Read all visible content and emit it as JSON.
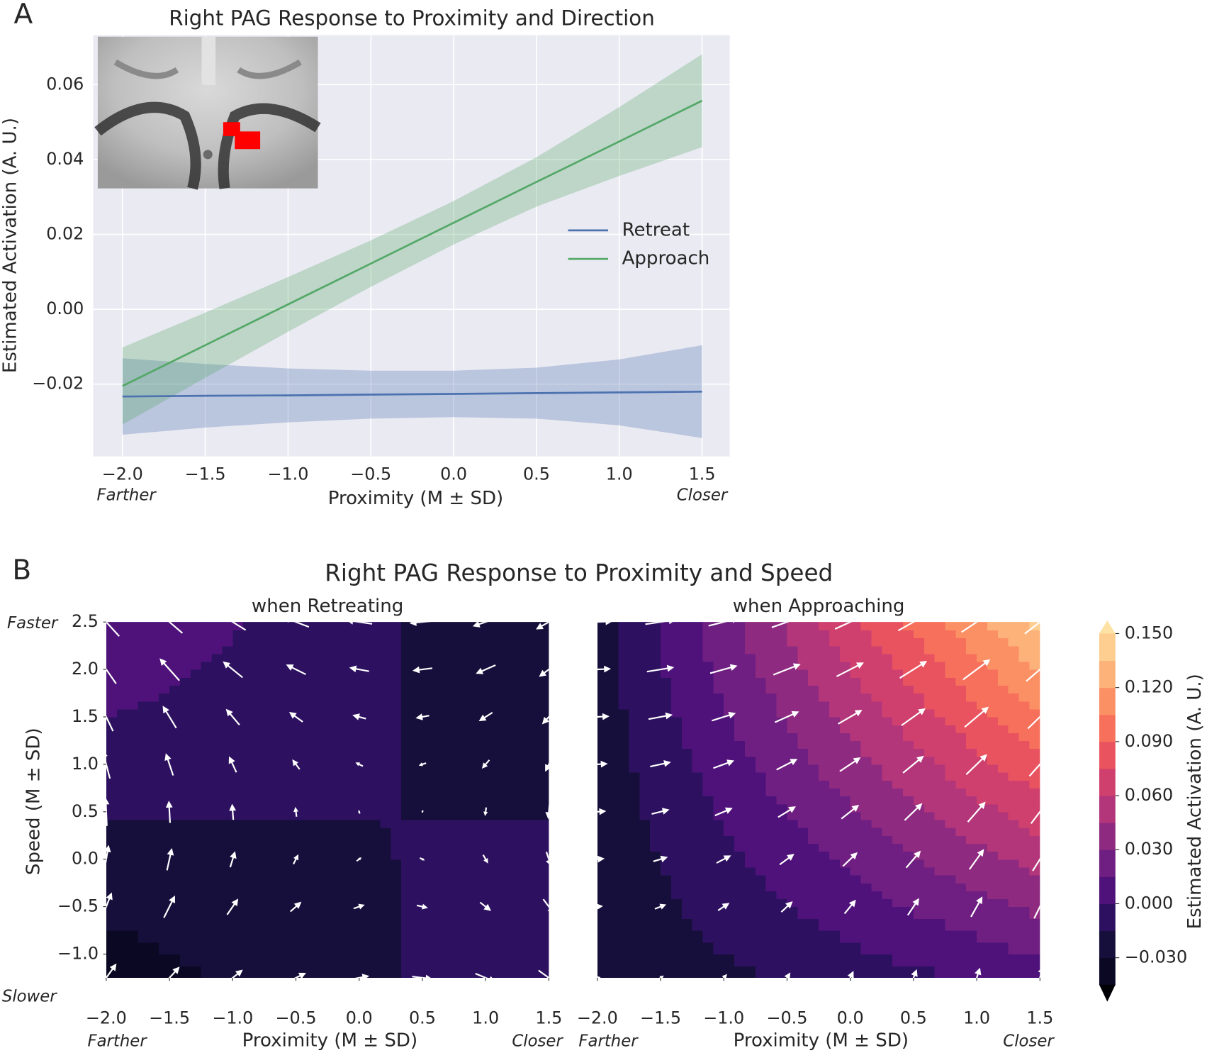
{
  "chart_data": [
    {
      "type": "line",
      "panel_label": "A",
      "title": "Right PAG Response to Proximity and Direction",
      "x_label": "Proximity (M ± SD)",
      "y_label": "Estimated Activation (A. U.)",
      "x_end_labels": [
        "Farther",
        "Closer"
      ],
      "x": [
        -2,
        -1.5,
        -1,
        -0.5,
        0,
        0.5,
        1,
        1.5
      ],
      "series": [
        {
          "name": "Retreat",
          "color": "#4c72b0",
          "values": [
            -0.0233,
            -0.0231,
            -0.023,
            -0.0228,
            -0.0226,
            -0.0224,
            -0.0222,
            -0.022
          ],
          "lower": [
            -0.0335,
            -0.0316,
            -0.0302,
            -0.0292,
            -0.0288,
            -0.0292,
            -0.031,
            -0.0344
          ],
          "upper": [
            -0.0131,
            -0.0146,
            -0.0158,
            -0.0164,
            -0.0164,
            -0.0156,
            -0.0134,
            -0.0096
          ]
        },
        {
          "name": "Approach",
          "color": "#55a868",
          "values": [
            -0.0205,
            -0.0096,
            0.0013,
            0.0122,
            0.0231,
            0.034,
            0.0448,
            0.0557
          ],
          "lower": [
            -0.0308,
            -0.0183,
            -0.006,
            0.006,
            0.0173,
            0.0274,
            0.0356,
            0.0433
          ],
          "upper": [
            -0.0102,
            -0.0009,
            0.0086,
            0.0184,
            0.0289,
            0.0406,
            0.054,
            0.0681
          ]
        }
      ],
      "xlim": [
        -2.177,
        1.667
      ],
      "ylim": [
        -0.0393,
        0.0732
      ],
      "xticks": [
        {
          "value": -2,
          "label": "−2.0"
        },
        {
          "value": -1.5,
          "label": "−1.5"
        },
        {
          "value": -1,
          "label": "−1.0"
        },
        {
          "value": -0.5,
          "label": "−0.5"
        },
        {
          "value": 0,
          "label": "0.0"
        },
        {
          "value": 0.5,
          "label": "0.5"
        },
        {
          "value": 1,
          "label": "1.0"
        },
        {
          "value": 1.5,
          "label": "1.5"
        }
      ],
      "yticks": [
        {
          "value": -0.02,
          "label": "−0.02"
        },
        {
          "value": 0,
          "label": "0.00"
        },
        {
          "value": 0.02,
          "label": "0.02"
        },
        {
          "value": 0.04,
          "label": "0.04"
        },
        {
          "value": 0.06,
          "label": "0.06"
        }
      ],
      "grid": true,
      "legend": "center right"
    },
    {
      "type": "contour",
      "panel_label": "B",
      "title": "Right PAG Response to Proximity and Speed",
      "x_label": "Proximity (M ± SD)",
      "y_label": "Speed (M ± SD)",
      "x_end_labels": [
        "Farther",
        "Closer"
      ],
      "y_end_labels": [
        "Slower",
        "Faster"
      ],
      "x": [
        -2,
        -1.5,
        -1,
        -0.5,
        0,
        0.5,
        1,
        1.5
      ],
      "y": [
        -1.25,
        -0.5,
        0,
        0.5,
        1,
        1.5,
        2,
        2.5
      ],
      "xlim": [
        -2,
        1.5
      ],
      "ylim": [
        -1.25,
        2.5
      ],
      "xticks": [
        {
          "value": -2,
          "label": "−2.0"
        },
        {
          "value": -1.5,
          "label": "−1.5"
        },
        {
          "value": -1,
          "label": "−1.0"
        },
        {
          "value": -0.5,
          "label": "−0.5"
        },
        {
          "value": 0,
          "label": "0.0"
        },
        {
          "value": 0.5,
          "label": "0.5"
        },
        {
          "value": 1,
          "label": "1.0"
        },
        {
          "value": 1.5,
          "label": "1.5"
        }
      ],
      "yticks": [
        {
          "value": -1,
          "label": "−1.0"
        },
        {
          "value": -0.5,
          "label": "−0.5"
        },
        {
          "value": 0,
          "label": "0.0"
        },
        {
          "value": 0.5,
          "label": "0.5"
        },
        {
          "value": 1,
          "label": "1.0"
        },
        {
          "value": 1.5,
          "label": "1.5"
        },
        {
          "value": 2,
          "label": "2.0"
        },
        {
          "value": 2.5,
          "label": "2.5"
        }
      ],
      "arrow_color": "#ffffff",
      "panels": [
        {
          "subtitle": "when Retreating",
          "z": [
            [
              -0.0378,
              -0.0328,
              -0.0279,
              -0.0229,
              -0.018,
              -0.013,
              -0.0081,
              -0.0031
            ],
            [
              -0.0274,
              -0.0247,
              -0.022,
              -0.0193,
              -0.0166,
              -0.0139,
              -0.0112,
              -0.0085
            ],
            [
              -0.0205,
              -0.0193,
              -0.0181,
              -0.0169,
              -0.0157,
              -0.0145,
              -0.0133,
              -0.0121
            ],
            [
              -0.0136,
              -0.0139,
              -0.0142,
              -0.0145,
              -0.0148,
              -0.0151,
              -0.0154,
              -0.0157
            ],
            [
              -0.0067,
              -0.0085,
              -0.0103,
              -0.0121,
              -0.0139,
              -0.0157,
              -0.0175,
              -0.0193
            ],
            [
              0.0002,
              -0.0031,
              -0.0064,
              -0.0097,
              -0.013,
              -0.0163,
              -0.0196,
              -0.0229
            ],
            [
              0.0071,
              0.0023,
              -0.0025,
              -0.0073,
              -0.0121,
              -0.0169,
              -0.0217,
              -0.0265
            ],
            [
              0.014,
              0.0077,
              0.0014,
              -0.0049,
              -0.0112,
              -0.0175,
              -0.0238,
              -0.0301
            ]
          ]
        },
        {
          "subtitle": "when Approaching",
          "z": [
            [
              -0.028,
              -0.023,
              -0.018,
              -0.013,
              -0.0081,
              -0.0031,
              0.0019,
              0.0069
            ],
            [
              -0.0266,
              -0.018,
              -0.0095,
              -0.0009,
              0.0076,
              0.0162,
              0.0247,
              0.0333
            ],
            [
              -0.0256,
              -0.0147,
              -0.0038,
              0.0071,
              0.0181,
              0.029,
              0.0399,
              0.0508
            ],
            [
              -0.0247,
              -0.0114,
              0.0019,
              0.0152,
              0.0285,
              0.0418,
              0.0551,
              0.0684
            ],
            [
              -0.0237,
              -0.0081,
              0.0076,
              0.0233,
              0.039,
              0.0546,
              0.0703,
              0.086
            ],
            [
              -0.0228,
              -0.0047,
              0.0133,
              0.0314,
              0.0494,
              0.0675,
              0.0855,
              0.1036
            ],
            [
              -0.0218,
              -0.0014,
              0.019,
              0.0394,
              0.0599,
              0.0803,
              0.1007,
              0.1211
            ],
            [
              -0.0209,
              0.0019,
              0.0247,
              0.0475,
              0.0703,
              0.0931,
              0.1159,
              0.1387
            ]
          ]
        }
      ],
      "colorbar": {
        "label": "Estimated Activation (A. U.)",
        "levels": [
          -0.045,
          -0.03,
          -0.015,
          0,
          0.015,
          0.03,
          0.045,
          0.06,
          0.075,
          0.09,
          0.105,
          0.12,
          0.135,
          0.15
        ],
        "colors": [
          "#0a0822",
          "#160f3b",
          "#2d1160",
          "#4f127b",
          "#6e1f81",
          "#8f2a81",
          "#b3367a",
          "#cf406f",
          "#e9535f",
          "#f6705c",
          "#fb9065",
          "#fdb27a",
          "#fece91"
        ],
        "under": "#000004",
        "over": "#fde2a3",
        "ticks": [
          {
            "value": -0.03,
            "label": "−0.030"
          },
          {
            "value": 0,
            "label": "0.000"
          },
          {
            "value": 0.03,
            "label": "0.030"
          },
          {
            "value": 0.06,
            "label": "0.060"
          },
          {
            "value": 0.09,
            "label": "0.090"
          },
          {
            "value": 0.12,
            "label": "0.120"
          },
          {
            "value": 0.15,
            "label": "0.150"
          }
        ]
      }
    }
  ]
}
